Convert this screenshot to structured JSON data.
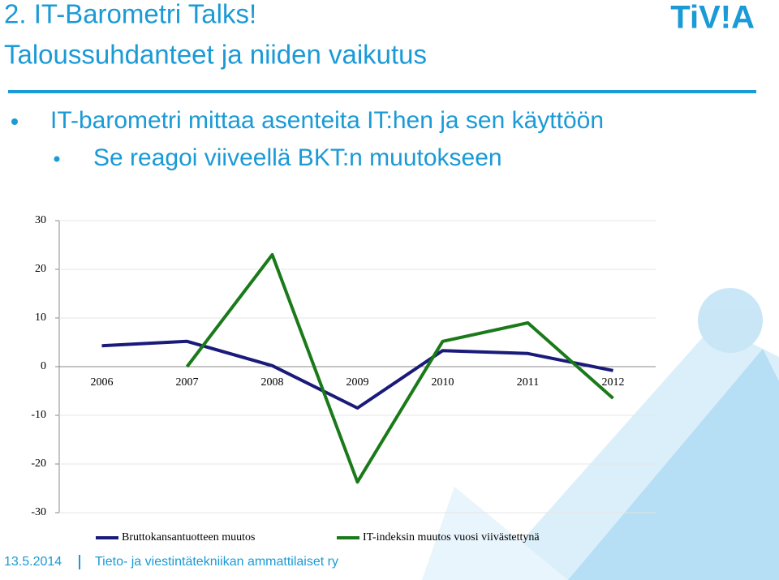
{
  "header": {
    "title_line1": "2. IT-Barometri Talks!",
    "title_line2": "Taloussuhdanteet ja niiden vaikutus",
    "logo": "TiV!A"
  },
  "bullets": [
    "IT-barometri mittaa asenteita IT:hen ja sen käyttöön",
    "Se reagoi viiveellä BKT:n muutokseen"
  ],
  "footer": {
    "date": "13.5.2014",
    "organization": "Tieto- ja viestintätekniikan ammattilaiset ry"
  },
  "chart_data": {
    "type": "line",
    "categories": [
      "2006",
      "2007",
      "2008",
      "2009",
      "2010",
      "2011",
      "2012"
    ],
    "series": [
      {
        "name": "Bruttokansantuotteen muutos",
        "color": "#1a1a7a",
        "values": [
          4.3,
          5.2,
          0.2,
          -8.5,
          3.3,
          2.7,
          -0.8
        ]
      },
      {
        "name": "IT-indeksin muutos vuosi viivästettynä",
        "color": "#1a7a1a",
        "values": [
          null,
          0,
          23,
          -23.7,
          5.2,
          9,
          -6.5
        ]
      }
    ],
    "ylim": [
      -30,
      30
    ],
    "yticks": [
      -30,
      -20,
      -10,
      0,
      10,
      20,
      30
    ],
    "grid": true
  }
}
